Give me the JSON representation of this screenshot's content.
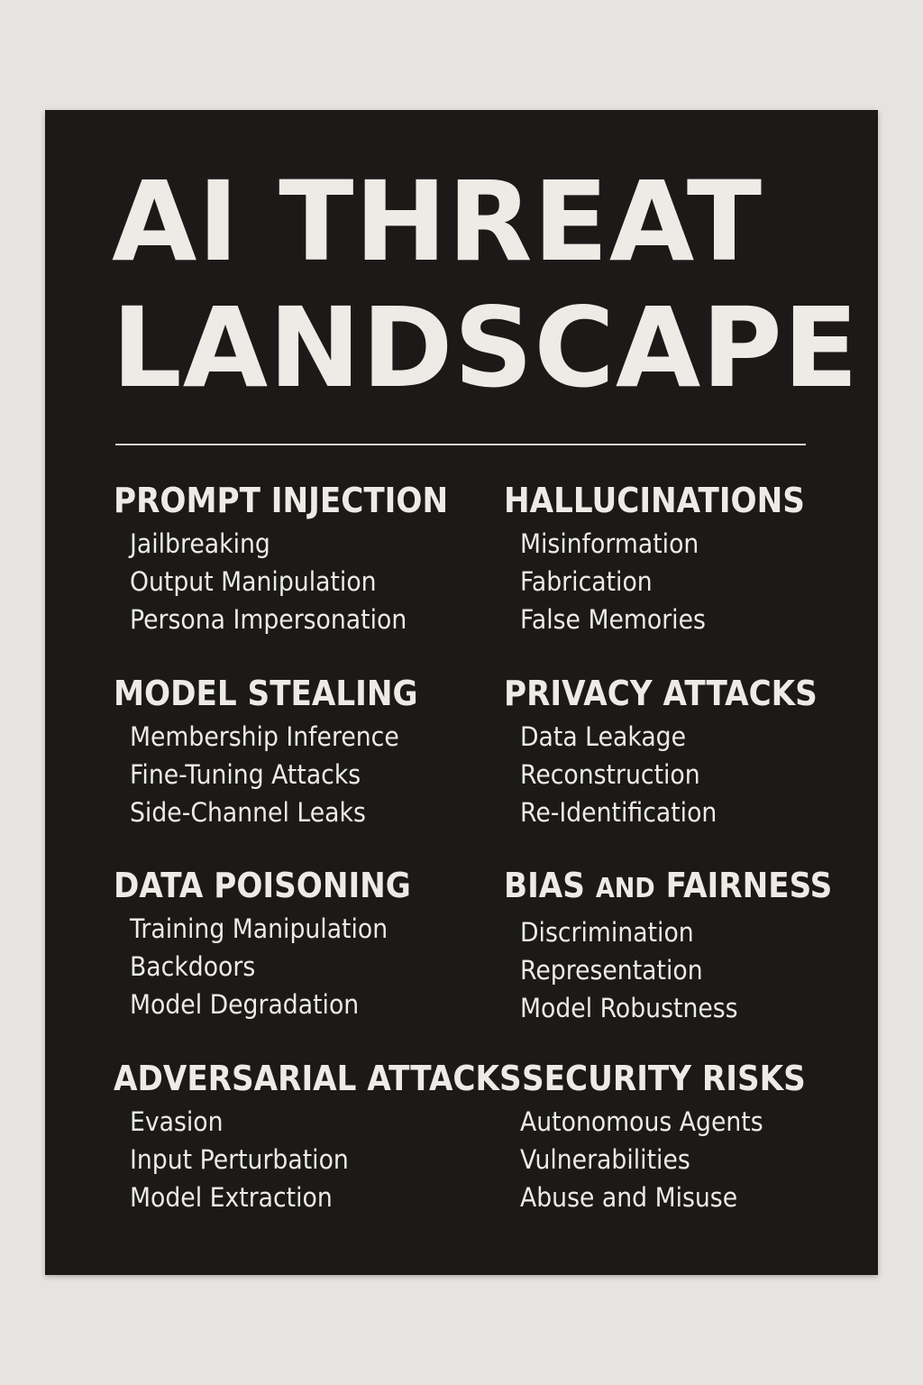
{
  "title": {
    "line1": "AI THREAT",
    "line2": "LANDSCAPE"
  },
  "sections": [
    {
      "heading": "PROMPT INJECTION",
      "items": [
        "Jailbreaking",
        "Output Manipulation",
        "Persona Impersonation"
      ]
    },
    {
      "heading": "HALLUCINATIONS",
      "items": [
        "Misinformation",
        "Fabrication",
        "False Memories"
      ]
    },
    {
      "heading": "MODEL STEALING",
      "items": [
        "Membership Inference",
        "Fine-Tuning Attacks",
        "Side-Channel Leaks"
      ]
    },
    {
      "heading": "PRIVACY ATTACKS",
      "items": [
        "Data Leakage",
        "Reconstruction",
        "Re-Identification"
      ]
    },
    {
      "heading": "DATA POISONING",
      "items": [
        "Training Manipulation",
        "Backdoors",
        "Model Degradation"
      ]
    },
    {
      "heading_parts": [
        "BIAS",
        "AND",
        "FAIRNESS"
      ],
      "items": [
        "Discrimination",
        "Representation",
        "Model Robustness"
      ]
    },
    {
      "heading": "ADVERSARIAL ATTACKS",
      "items": [
        "Evasion",
        "Input Perturbation",
        "Model Extraction"
      ]
    },
    {
      "heading": "SECURITY RISKS",
      "items": [
        "Autonomous Agents",
        "Vulnerabilities",
        "Abuse and Misuse"
      ]
    }
  ]
}
